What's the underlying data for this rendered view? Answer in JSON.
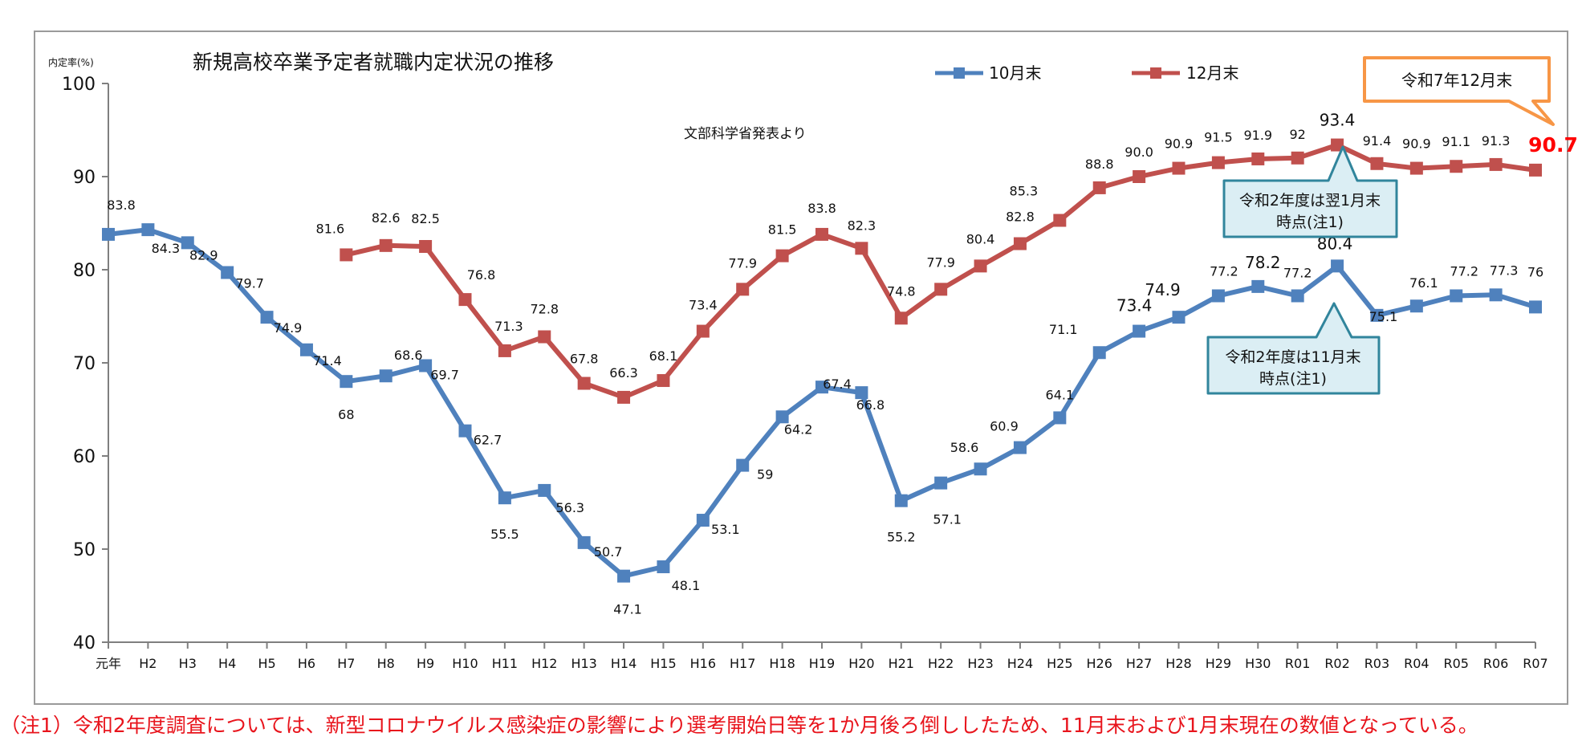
{
  "chart_data": {
    "type": "line",
    "title": "新規高校卒業予定者就職内定状況の推移",
    "ylabel": "内定率(%)",
    "xlabel": "",
    "source_note": "文部科学省発表より",
    "ylim": [
      40,
      100
    ],
    "yticks": [
      40,
      50,
      60,
      70,
      80,
      90,
      100
    ],
    "categories": [
      "元年",
      "H2",
      "H3",
      "H4",
      "H5",
      "H6",
      "H7",
      "H8",
      "H9",
      "H10",
      "H11",
      "H12",
      "H13",
      "H14",
      "H15",
      "H16",
      "H17",
      "H18",
      "H19",
      "H20",
      "H21",
      "H22",
      "H23",
      "H24",
      "H25",
      "H26",
      "H27",
      "H28",
      "H29",
      "H30",
      "R01",
      "R02",
      "R03",
      "R04",
      "R05",
      "R06",
      "R07"
    ],
    "series": [
      {
        "name": "10月末",
        "color": "#4f81bd",
        "values": [
          83.8,
          84.3,
          82.9,
          79.7,
          74.9,
          71.4,
          68.0,
          68.6,
          69.7,
          62.7,
          55.5,
          56.3,
          50.7,
          47.1,
          48.1,
          53.1,
          59.0,
          64.2,
          67.4,
          66.8,
          55.2,
          57.1,
          58.6,
          60.9,
          64.1,
          71.1,
          73.4,
          74.9,
          77.2,
          78.2,
          77.2,
          80.4,
          75.1,
          76.1,
          77.2,
          77.3,
          76.0
        ],
        "labels": [
          "83.8",
          "84.3",
          "82.9",
          "79.7",
          "74.9",
          "71.4",
          "68",
          "68.6",
          "69.7",
          "62.7",
          "55.5",
          "56.3",
          "50.7",
          "47.1",
          "48.1",
          "53.1",
          "59",
          "64.2",
          "67.4",
          "66.8",
          "55.2",
          "57.1",
          "58.6",
          "60.9",
          "64.1",
          "71.1",
          "73.4",
          "74.9",
          "77.2",
          "78.2",
          "77.2",
          "80.4",
          "75.1",
          "76.1",
          "77.2",
          "77.3",
          "76"
        ]
      },
      {
        "name": "12月末",
        "color": "#c0504d",
        "values": [
          null,
          null,
          null,
          null,
          null,
          null,
          81.6,
          82.6,
          82.5,
          76.8,
          71.3,
          72.8,
          67.8,
          66.3,
          68.1,
          73.4,
          77.9,
          81.5,
          83.8,
          82.3,
          74.8,
          77.9,
          80.4,
          82.8,
          85.3,
          88.8,
          90.0,
          90.9,
          91.5,
          91.9,
          92.0,
          93.4,
          91.4,
          90.9,
          91.1,
          91.3,
          90.7
        ],
        "labels": [
          null,
          null,
          null,
          null,
          null,
          null,
          "81.6",
          "82.6",
          "82.5",
          "76.8",
          "71.3",
          "72.8",
          "67.8",
          "66.3",
          "68.1",
          "73.4",
          "77.9",
          "81.5",
          "83.8",
          "82.3",
          "74.8",
          "77.9",
          "80.4",
          "82.8",
          "85.3",
          "88.8",
          "90.0",
          "90.9",
          "91.5",
          "91.9",
          "92",
          "93.4",
          "91.4",
          "90.9",
          "91.1",
          "91.3",
          "90.7"
        ]
      }
    ],
    "callouts": [
      {
        "id": "r07",
        "lines": [
          "令和7年12月末"
        ],
        "border": "#f79646"
      },
      {
        "id": "r02-dec",
        "lines": [
          "令和2年度は翌1月末",
          "時点(注1)"
        ],
        "border": "#31859c"
      },
      {
        "id": "r02-oct",
        "lines": [
          "令和2年度は11月末",
          "時点(注1)"
        ],
        "border": "#31859c"
      }
    ],
    "highlight_color": "#ff0000",
    "footnote": "（注1）令和2年度調査については、新型コロナウイルス感染症の影響により選考開始日等を1か月後ろ倒ししたため、11月末および1月末現在の数値となっている。"
  }
}
